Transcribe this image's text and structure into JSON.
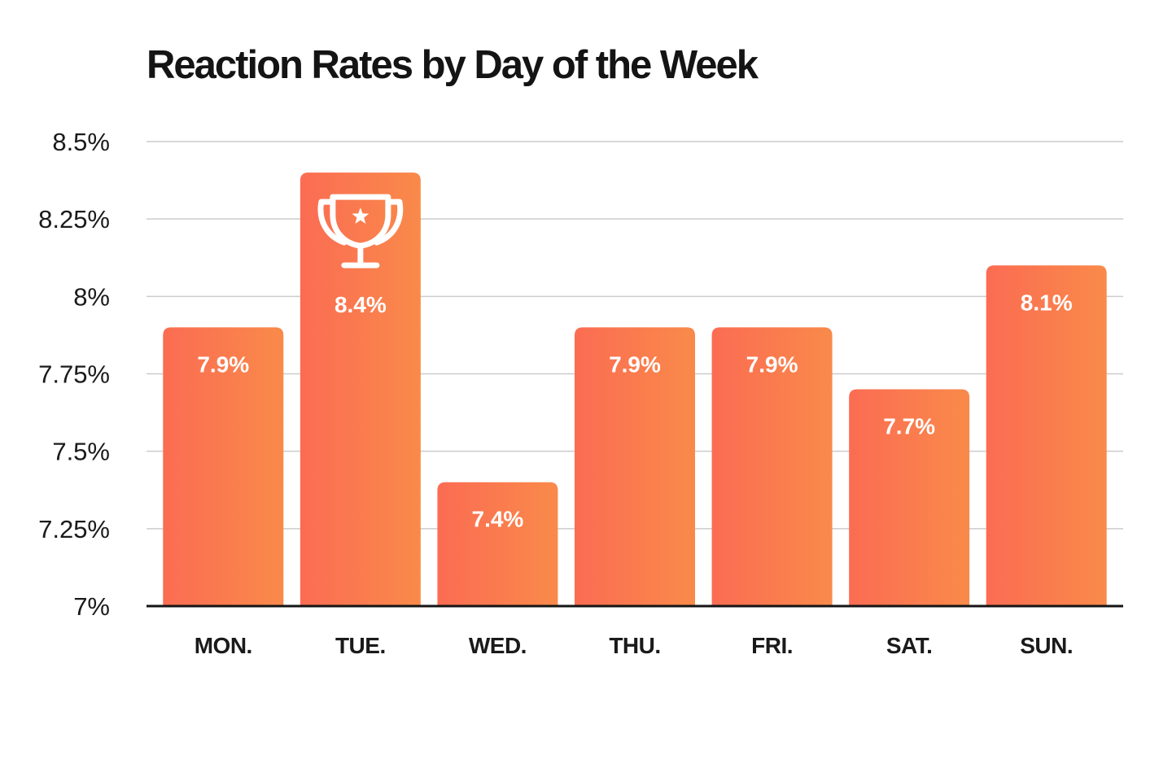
{
  "chart_data": {
    "type": "bar",
    "title": "Reaction Rates by Day of the Week",
    "categories": [
      "MON.",
      "TUE.",
      "WED.",
      "THU.",
      "FRI.",
      "SAT.",
      "SUN."
    ],
    "values": [
      7.9,
      8.4,
      7.4,
      7.9,
      7.9,
      7.7,
      8.1
    ],
    "value_labels": [
      "7.9%",
      "8.4%",
      "7.4%",
      "7.9%",
      "7.9%",
      "7.7%",
      "8.1%"
    ],
    "y_ticks": [
      7,
      7.25,
      7.5,
      7.75,
      8,
      8.25,
      8.5
    ],
    "y_tick_labels": [
      "7%",
      "7.25%",
      "7.5%",
      "7.75%",
      "8%",
      "8.25%",
      "8.5%"
    ],
    "ylim": [
      7,
      8.5
    ],
    "xlabel": "",
    "ylabel": "",
    "grid": true,
    "highlight": {
      "category": "TUE.",
      "icon": "trophy-icon"
    },
    "colors": {
      "bar_start": "#FB6C53",
      "bar_end": "#F98A4A",
      "grid": "#cccccc",
      "axis": "#141414",
      "label": "#ffffff"
    }
  }
}
